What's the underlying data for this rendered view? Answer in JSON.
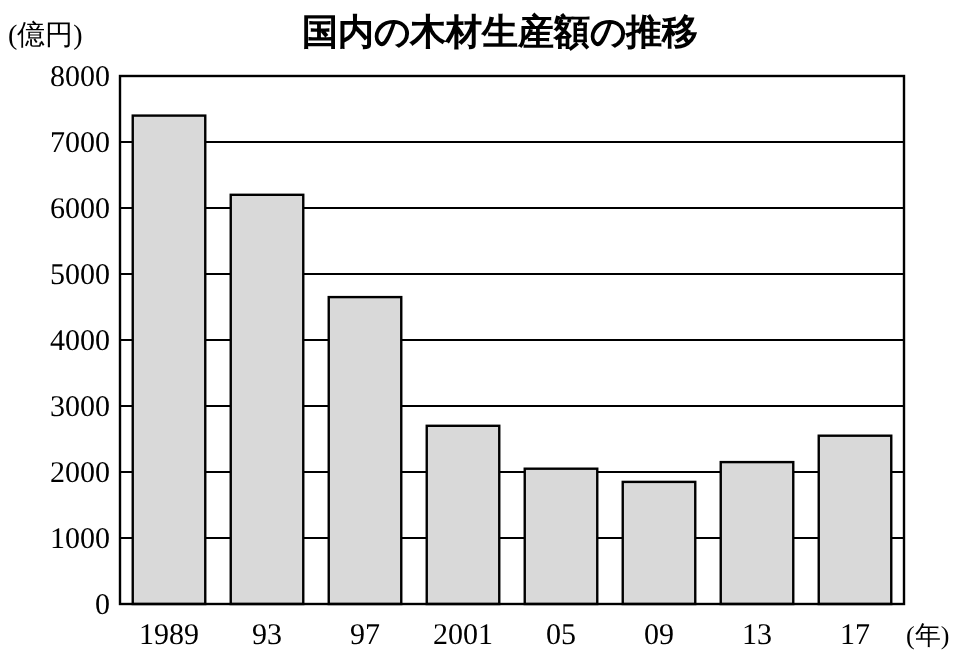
{
  "chart_data": {
    "type": "bar",
    "title": "国内の木材生産額の推移",
    "ylabel": "(億円)",
    "xlabel": "(年)",
    "categories": [
      "1989",
      "93",
      "97",
      "2001",
      "05",
      "09",
      "13",
      "17"
    ],
    "values": [
      7400,
      6200,
      4650,
      2700,
      2050,
      1850,
      2150,
      2550
    ],
    "color": "#d9d9d9",
    "ylim": [
      0,
      8000
    ],
    "yticks": [
      0,
      1000,
      2000,
      3000,
      4000,
      5000,
      6000,
      7000,
      8000
    ],
    "grid": "y"
  }
}
